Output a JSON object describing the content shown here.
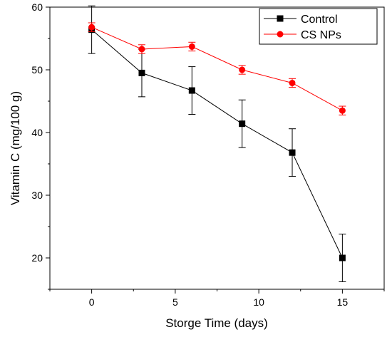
{
  "chart_data": {
    "type": "line",
    "title": "",
    "xlabel": "Storge Time (days)",
    "ylabel": "Vitamin C (mg/100 g)",
    "xlim": [
      -2.5,
      17.5
    ],
    "ylim": [
      15,
      60
    ],
    "xticks": [
      0,
      5,
      10,
      15
    ],
    "yticks": [
      20,
      30,
      40,
      50,
      60
    ],
    "grid": false,
    "legend_position": "top-right",
    "x": [
      0,
      3,
      6,
      9,
      12,
      15
    ],
    "series": [
      {
        "name": "Control",
        "color": "#000000",
        "marker": "square",
        "values": [
          56.4,
          49.5,
          46.7,
          41.4,
          36.8,
          20.0
        ],
        "errors": [
          3.8,
          3.8,
          3.8,
          3.8,
          3.8,
          3.8
        ]
      },
      {
        "name": "CS NPs",
        "color": "#ff0000",
        "marker": "circle",
        "values": [
          56.8,
          53.3,
          53.7,
          50.0,
          47.9,
          43.5
        ],
        "errors": [
          0.7,
          0.7,
          0.7,
          0.7,
          0.7,
          0.7
        ]
      }
    ]
  }
}
